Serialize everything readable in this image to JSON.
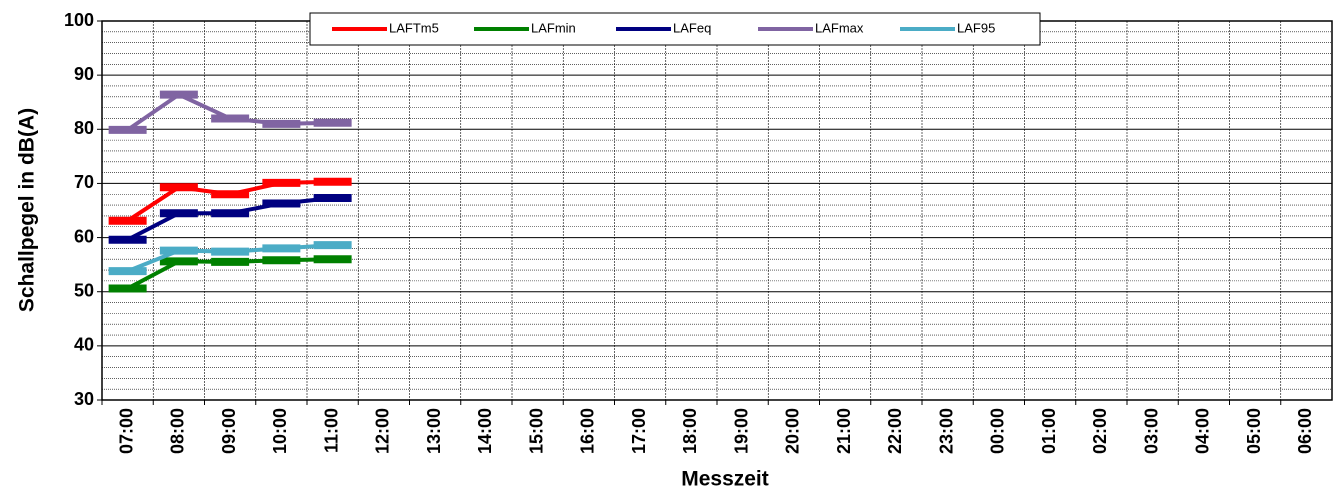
{
  "chart_data": {
    "type": "line",
    "x_label": "Messzeit",
    "y_label": "Schallpegel in dB(A)",
    "categories": [
      "07:00",
      "08:00",
      "09:00",
      "10:00",
      "11:00",
      "12:00",
      "13:00",
      "14:00",
      "15:00",
      "16:00",
      "17:00",
      "18:00",
      "19:00",
      "20:00",
      "21:00",
      "22:00",
      "23:00",
      "00:00",
      "01:00",
      "02:00",
      "03:00",
      "04:00",
      "05:00",
      "06:00"
    ],
    "series": [
      {
        "name": "LAFTm5",
        "color": "#ff0000",
        "values": [
          63.1,
          69.3,
          68.0,
          70.1,
          70.3,
          null,
          null,
          null,
          null,
          null,
          null,
          null,
          null,
          null,
          null,
          null,
          null,
          null,
          null,
          null,
          null,
          null,
          null,
          null
        ]
      },
      {
        "name": "LAFmin",
        "color": "#008000",
        "values": [
          50.6,
          55.6,
          55.5,
          55.8,
          56.0,
          null,
          null,
          null,
          null,
          null,
          null,
          null,
          null,
          null,
          null,
          null,
          null,
          null,
          null,
          null,
          null,
          null,
          null,
          null
        ]
      },
      {
        "name": "LAFeq",
        "color": "#000080",
        "values": [
          59.6,
          64.5,
          64.5,
          66.3,
          67.3,
          null,
          null,
          null,
          null,
          null,
          null,
          null,
          null,
          null,
          null,
          null,
          null,
          null,
          null,
          null,
          null,
          null,
          null,
          null
        ]
      },
      {
        "name": "LAFmax",
        "color": "#8064a2",
        "values": [
          79.9,
          86.4,
          82.0,
          81.0,
          81.2,
          null,
          null,
          null,
          null,
          null,
          null,
          null,
          null,
          null,
          null,
          null,
          null,
          null,
          null,
          null,
          null,
          null,
          null,
          null
        ]
      },
      {
        "name": "LAF95",
        "color": "#4bacc6",
        "values": [
          53.8,
          57.6,
          57.4,
          58.0,
          58.6,
          null,
          null,
          null,
          null,
          null,
          null,
          null,
          null,
          null,
          null,
          null,
          null,
          null,
          null,
          null,
          null,
          null,
          null,
          null
        ]
      }
    ],
    "ylim": [
      30,
      100
    ],
    "yticks": [
      30,
      40,
      50,
      60,
      70,
      80,
      90,
      100
    ],
    "grid": true,
    "legend": "top"
  }
}
